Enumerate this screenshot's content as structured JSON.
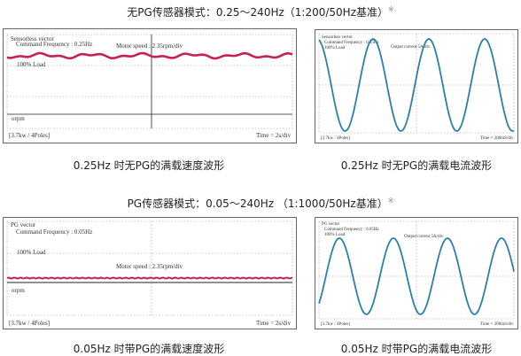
{
  "sections": [
    {
      "title": "无PG传感器模式：0.25～240Hz（1:200/50Hz基准）",
      "note": "※",
      "speed": {
        "mode": "Sensorless vector",
        "command": "Command Frequency : 0.25Hz",
        "scale": "Motor speed : 2.35rpm/div",
        "load": "100% Load",
        "zero": "orpm",
        "spec": "[3.7kw / 4Poles]",
        "time": "Time = 2s/div",
        "caption": "0.25Hz 时无PG的满载速度波形"
      },
      "current": {
        "mode": "Sensorless vector",
        "command": "Command Frequency : 0.25Hz",
        "load": "100% Load",
        "scale": "Output current 5A/div",
        "spec": "[3.7kw / 4Poles]",
        "time": "Time = 200mS/div",
        "caption": "0.25Hz 时无PG的满载电流波形"
      }
    },
    {
      "title": "PG传感器模式：0.05～240Hz （1:1000/50Hz基准）",
      "note": "※",
      "speed": {
        "mode": "PG vector",
        "command": "Command Frequency : 0.05Hz",
        "load": "100% Load",
        "scale": "Motor speed : 2.35rpm/div",
        "zero": "orpm",
        "spec": "[3.7kw / 4Poles]",
        "time": "Time = 2s/div",
        "caption": "0.05Hz 时带PG的满载速度波形"
      },
      "current": {
        "mode": "PG vector",
        "command": "Command Frequency : 0.05Hz",
        "load": "100% Load",
        "scale": "Output current 5A/div",
        "spec": "[3.7kw / 4Poles]",
        "time": "Time = 200mS/div",
        "caption": "0.05Hz 时带PG的满载电流波形"
      }
    }
  ]
}
